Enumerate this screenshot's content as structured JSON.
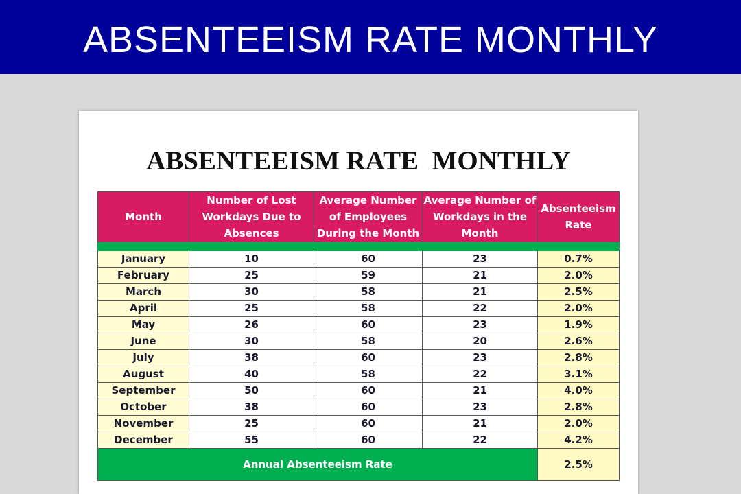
{
  "banner": {
    "title": "ABSENTEEISM RATE MONTHLY"
  },
  "sheet": {
    "title": "ABSENTEEISM RATE  MONTHLY"
  },
  "table": {
    "headers": [
      "Month",
      "Number of Lost Workdays Due to Absences",
      "Average Number of Employees During the Month",
      "Average Number of Workdays in the Month",
      "Absenteeism Rate"
    ],
    "rows": [
      [
        "January",
        "10",
        "60",
        "23",
        "0.7%"
      ],
      [
        "February",
        "25",
        "59",
        "21",
        "2.0%"
      ],
      [
        "March",
        "30",
        "58",
        "21",
        "2.5%"
      ],
      [
        "April",
        "25",
        "58",
        "22",
        "2.0%"
      ],
      [
        "May",
        "26",
        "60",
        "23",
        "1.9%"
      ],
      [
        "June",
        "30",
        "58",
        "20",
        "2.6%"
      ],
      [
        "July",
        "38",
        "60",
        "23",
        "2.8%"
      ],
      [
        "August",
        "40",
        "58",
        "22",
        "3.1%"
      ],
      [
        "September",
        "50",
        "60",
        "21",
        "4.0%"
      ],
      [
        "October",
        "38",
        "60",
        "23",
        "2.8%"
      ],
      [
        "November",
        "25",
        "60",
        "21",
        "2.0%"
      ],
      [
        "December",
        "55",
        "60",
        "22",
        "4.2%"
      ]
    ],
    "footer": {
      "label": "Annual Absenteeism Rate",
      "value": "2.5%"
    }
  }
}
